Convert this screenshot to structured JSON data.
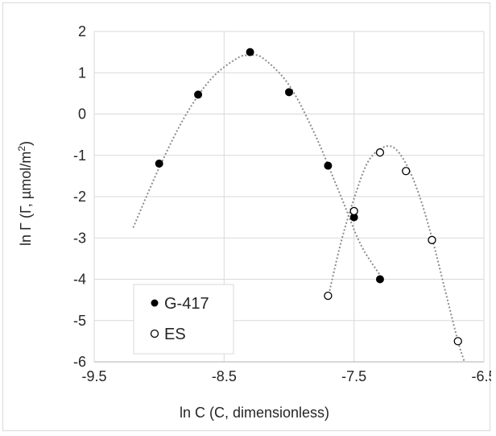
{
  "chart_data": {
    "type": "scatter",
    "title": "",
    "xlabel": "ln C (C, dimensionless)",
    "ylabel_main": "ln Γ (Γ, µmol/m",
    "ylabel_sup": "2",
    "ylabel_close": ")",
    "xlim": [
      -9.5,
      -6.5
    ],
    "ylim": [
      -6,
      2
    ],
    "x_ticks": [
      -9.5,
      -8.5,
      -7.5,
      -6.5
    ],
    "x_tick_labels": [
      "-9.5",
      "-8.5",
      "-7.5",
      "-6.5"
    ],
    "y_ticks": [
      2,
      1,
      0,
      -1,
      -2,
      -3,
      -4,
      -5,
      -6
    ],
    "y_tick_labels": [
      "2",
      "1",
      "0",
      "-1",
      "-2",
      "-3",
      "-4",
      "-5",
      "-6"
    ],
    "grid": true,
    "legend_position": "bottom-left",
    "series": [
      {
        "name": "G-417",
        "marker": "filled-circle",
        "color": "#000000",
        "x": [
          -9.0,
          -8.7,
          -8.3,
          -8.0,
          -7.7,
          -7.5,
          -7.3
        ],
        "y": [
          -1.2,
          0.47,
          1.5,
          0.53,
          -1.25,
          -2.5,
          -4.0
        ],
        "trendline": {
          "x": [
            -9.2,
            -9.0,
            -8.8,
            -8.6,
            -8.4,
            -8.3,
            -8.2,
            -8.0,
            -7.8,
            -7.6,
            -7.45,
            -7.3
          ],
          "y": [
            -2.75,
            -1.3,
            -0.05,
            0.85,
            1.35,
            1.42,
            1.35,
            0.7,
            -0.5,
            -2.0,
            -3.15,
            -3.9
          ]
        }
      },
      {
        "name": "ES",
        "marker": "open-circle",
        "color": "#000000",
        "x": [
          -7.7,
          -7.5,
          -7.3,
          -7.1,
          -6.9,
          -6.7
        ],
        "y": [
          -4.4,
          -2.35,
          -0.93,
          -1.38,
          -3.05,
          -5.5
        ],
        "trendline": {
          "x": [
            -7.7,
            -7.6,
            -7.5,
            -7.4,
            -7.3,
            -7.2,
            -7.1,
            -7.0,
            -6.9,
            -6.8,
            -6.7,
            -6.65
          ],
          "y": [
            -4.45,
            -3.1,
            -2.05,
            -1.2,
            -0.85,
            -0.8,
            -1.2,
            -1.95,
            -3.0,
            -4.25,
            -5.5,
            -6.0
          ]
        }
      }
    ]
  },
  "colors": {
    "grid": "#d9d9d9",
    "axis": "#bfbfbf",
    "trend": "#8c8c8c",
    "marker": "#000000"
  }
}
